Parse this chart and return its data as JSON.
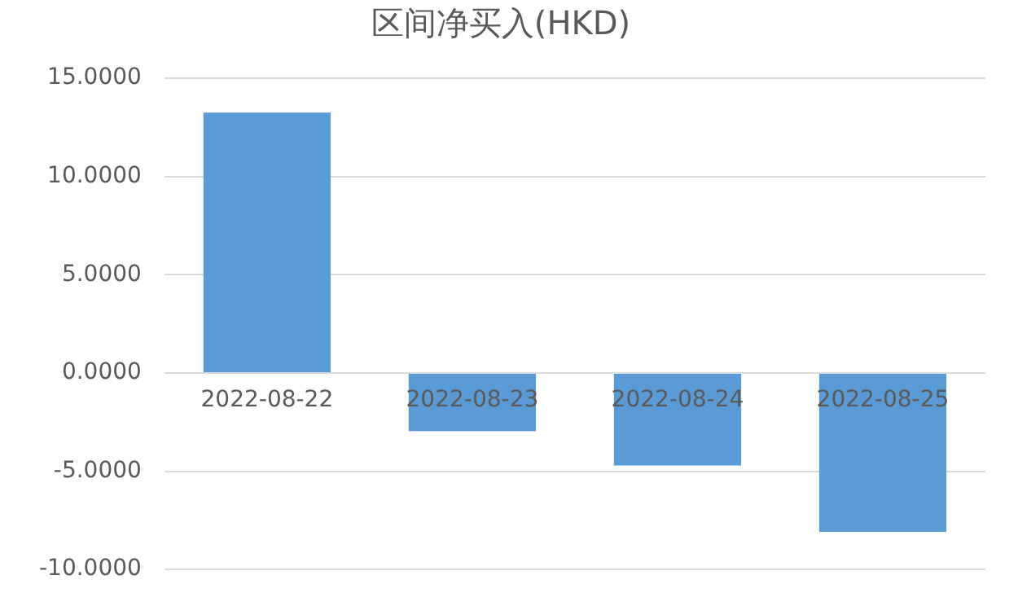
{
  "chart_data": {
    "type": "bar",
    "title": "区间净买入(HKD)",
    "categories": [
      "2022-08-22",
      "2022-08-23",
      "2022-08-24",
      "2022-08-25"
    ],
    "values": [
      13.25,
      -2.96,
      -4.71,
      -8.09
    ],
    "color": "#5b9bd5",
    "ylim": [
      -10,
      15
    ],
    "yticks": [
      {
        "value": -10,
        "label": "-10.0000"
      },
      {
        "value": -5,
        "label": "-5.0000"
      },
      {
        "value": 0,
        "label": "0.0000"
      },
      {
        "value": 5,
        "label": "5.0000"
      },
      {
        "value": 10,
        "label": "10.0000"
      },
      {
        "value": 15,
        "label": "15.0000"
      }
    ],
    "grid": "y"
  }
}
